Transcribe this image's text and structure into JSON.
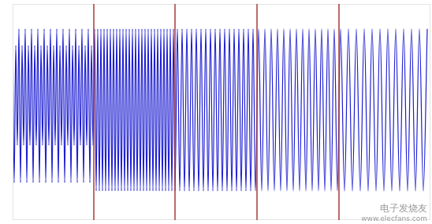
{
  "chart_data": {
    "type": "line",
    "color": "#1e1ed2",
    "xlim": [
      0,
      530
    ],
    "ylim": [
      -1.3,
      1.3
    ],
    "grid": false,
    "tick_labels": false,
    "dividers": [
      103,
      206,
      310,
      414
    ],
    "annotations": [
      "电子发烧友",
      "www.elecfans.com"
    ],
    "x": [
      0,
      2,
      4,
      6,
      8,
      10,
      12,
      14,
      16,
      18,
      20,
      22,
      24,
      26,
      28,
      30,
      32,
      34,
      36,
      38,
      40,
      42,
      44,
      46,
      48,
      50,
      52,
      54,
      56,
      58,
      60,
      62,
      64,
      66,
      68,
      70,
      72,
      74,
      76,
      78,
      80,
      82,
      84,
      86,
      88,
      90,
      92,
      94,
      96,
      98,
      100,
      102,
      104,
      106,
      108,
      110,
      112,
      114,
      116,
      118,
      120,
      122,
      124,
      126,
      128,
      130,
      132,
      134,
      136,
      138,
      140,
      142,
      144,
      146,
      148,
      150,
      152,
      154,
      156,
      158,
      160,
      162,
      164,
      166,
      168,
      170,
      172,
      174,
      176,
      178,
      180,
      182,
      184,
      186,
      188,
      190,
      192,
      194,
      196,
      198,
      200,
      202,
      204,
      206,
      209,
      212,
      215,
      218,
      221,
      224,
      227,
      230,
      233,
      236,
      239,
      242,
      245,
      248,
      251,
      254,
      257,
      260,
      263,
      266,
      269,
      272,
      275,
      278,
      281,
      284,
      287,
      290,
      293,
      296,
      299,
      302,
      305,
      308,
      312,
      316,
      320,
      324,
      328,
      332,
      336,
      340,
      344,
      348,
      352,
      356,
      360,
      364,
      368,
      372,
      376,
      380,
      384,
      388,
      392,
      396,
      400,
      404,
      408,
      412,
      416,
      421,
      426,
      431,
      436,
      441,
      446,
      451,
      456,
      461,
      466,
      471,
      476,
      481,
      486,
      491,
      496,
      501,
      506,
      511,
      516,
      521,
      526
    ],
    "values": [
      1,
      -0.85,
      0.8,
      -0.4,
      1,
      -0.85,
      0.8,
      -0.4,
      1,
      -0.85,
      0.8,
      -0.4,
      1,
      -0.85,
      0.8,
      -0.4,
      1,
      -0.85,
      0.8,
      -0.4,
      1,
      -0.85,
      0.8,
      -0.4,
      1,
      -0.85,
      0.8,
      -0.4,
      1,
      -0.85,
      0.8,
      -0.4,
      1,
      -0.85,
      0.8,
      -0.4,
      1,
      -0.85,
      0.8,
      -0.4,
      1,
      -0.85,
      0.8,
      -0.4,
      1,
      -0.85,
      0.8,
      -0.4,
      1,
      -0.85,
      0.8,
      -0.4,
      1,
      -0.95,
      1,
      -0.95,
      1,
      -0.95,
      1,
      -0.95,
      1,
      -0.95,
      1,
      -0.95,
      1,
      -0.95,
      1,
      -0.95,
      1,
      -0.95,
      1,
      -0.95,
      1,
      -0.95,
      1,
      -0.95,
      1,
      -0.95,
      1,
      -0.95,
      1,
      -0.95,
      1,
      -0.95,
      1,
      -0.95,
      1,
      -0.95,
      1,
      -0.95,
      1,
      -0.95,
      1,
      -0.95,
      1,
      -0.95,
      1,
      -0.95,
      1,
      -0.95,
      1,
      -0.95,
      1,
      -0.95,
      1,
      -0.95,
      1,
      -0.95,
      1,
      -0.95,
      1,
      -0.95,
      1,
      -0.95,
      1,
      -0.95,
      1,
      -0.95,
      1,
      -0.95,
      1,
      -0.95,
      1,
      -0.95,
      1,
      -0.95,
      1,
      -0.95,
      1,
      -0.95,
      1,
      -0.95,
      1,
      -0.95,
      1,
      -0.95,
      1,
      -0.95,
      1,
      -0.95,
      1,
      -0.95,
      1,
      -0.95,
      1,
      -0.95,
      1,
      -0.95,
      1,
      -0.95,
      1,
      -0.95,
      1,
      -0.95,
      1,
      -0.95,
      1,
      -0.95,
      1,
      -0.95,
      1,
      -0.95,
      1,
      -0.95,
      1,
      -0.95,
      1,
      -0.95,
      1,
      -0.95,
      1,
      -0.95,
      1,
      -0.95,
      1,
      -0.95,
      1,
      -0.95,
      1,
      -0.95,
      1,
      -0.95,
      1,
      -0.95,
      1,
      -0.95,
      1
    ]
  }
}
